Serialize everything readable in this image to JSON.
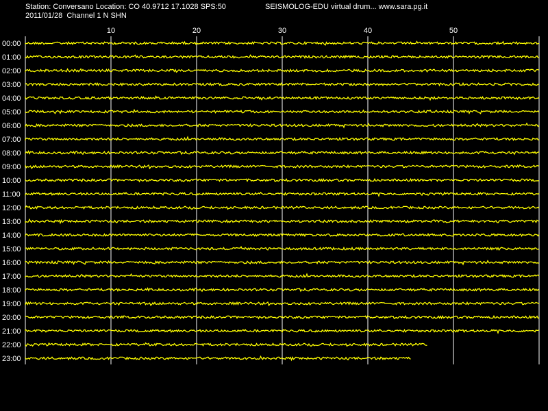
{
  "header": {
    "station_line": "Station: Conversano Location: CO 40.9712 17.1028 SPS:50",
    "brand_line": "SEISMOLOG-EDU virtual drum... www.sara.pg.it",
    "date_line": "2011/01/28  Channel 1 N SHN"
  },
  "colors": {
    "background": "#000000",
    "trace": "#ffff00",
    "grid": "#ffffff",
    "text": "#ffffff"
  },
  "chart_data": {
    "type": "line",
    "title": "",
    "xlabel": "",
    "ylabel": "",
    "x_range": [
      0,
      60
    ],
    "x_ticks": [
      "10",
      "20",
      "30",
      "40",
      "50"
    ],
    "x_tick_values": [
      10,
      20,
      30,
      40,
      50
    ],
    "grid": true,
    "trace_color": "#ffff00",
    "rows": [
      {
        "label": "00:00",
        "end_minute": 60
      },
      {
        "label": "01:00",
        "end_minute": 60
      },
      {
        "label": "02:00",
        "end_minute": 60
      },
      {
        "label": "03:00",
        "end_minute": 60
      },
      {
        "label": "04:00",
        "end_minute": 60
      },
      {
        "label": "05:00",
        "end_minute": 60
      },
      {
        "label": "06:00",
        "end_minute": 60
      },
      {
        "label": "07:00",
        "end_minute": 60
      },
      {
        "label": "08:00",
        "end_minute": 60
      },
      {
        "label": "09:00",
        "end_minute": 60
      },
      {
        "label": "10:00",
        "end_minute": 60
      },
      {
        "label": "11:00",
        "end_minute": 60
      },
      {
        "label": "12:00",
        "end_minute": 60
      },
      {
        "label": "13:00",
        "end_minute": 60
      },
      {
        "label": "14:00",
        "end_minute": 60
      },
      {
        "label": "15:00",
        "end_minute": 60
      },
      {
        "label": "16:00",
        "end_minute": 60
      },
      {
        "label": "17:00",
        "end_minute": 60
      },
      {
        "label": "18:00",
        "end_minute": 60
      },
      {
        "label": "19:00",
        "end_minute": 60
      },
      {
        "label": "20:00",
        "end_minute": 60
      },
      {
        "label": "21:00",
        "end_minute": 60
      },
      {
        "label": "22:00",
        "end_minute": 47
      },
      {
        "label": "23:00",
        "end_minute": 45
      }
    ]
  }
}
